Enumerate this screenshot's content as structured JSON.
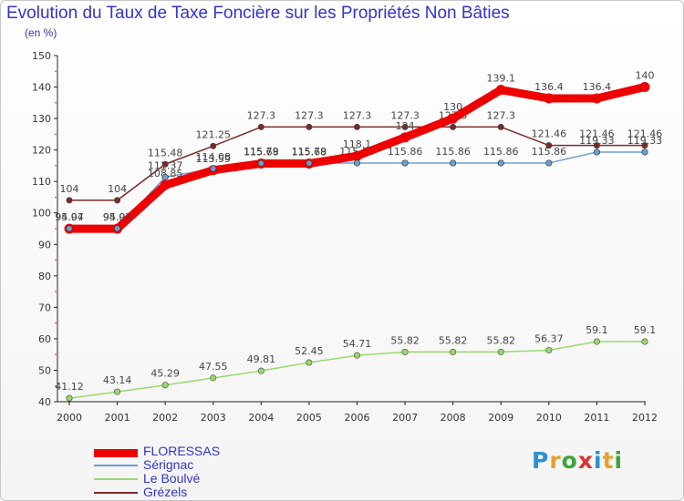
{
  "header": {
    "title": "Evolution du Taux de Taxe Foncière sur les Propriétés Non Bâties",
    "unit": "(en %)"
  },
  "logo": {
    "text": "Proxiti",
    "letters": [
      "P",
      "r",
      "o",
      "x",
      "i",
      "t",
      "i"
    ],
    "letter_colors": [
      "#2b8fd6",
      "#e8a030",
      "#3aa53a",
      "#e0302a",
      "#2b8fd6",
      "#e8a030",
      "#3aa53a"
    ]
  },
  "chart_data": {
    "type": "line",
    "title": "Evolution du Taux de Taxe Foncière sur les Propriétés Non Bâties",
    "ylabel": "(en %)",
    "xlabel": "",
    "x": [
      "2000",
      "2001",
      "2002",
      "2003",
      "2004",
      "2005",
      "2006",
      "2007",
      "2008",
      "2009",
      "2010",
      "2011",
      "2012"
    ],
    "ylim": [
      40,
      150
    ],
    "yticks": [
      40,
      50,
      60,
      70,
      80,
      90,
      100,
      110,
      120,
      130,
      140,
      150
    ],
    "grid": false,
    "legend_position": "bottom-left",
    "series": [
      {
        "name": "FLORESSAS",
        "color": "#ee0000",
        "emphasis": true,
        "values": [
          94.97,
          94.97,
          108.85,
          113.59,
          115.68,
          115.68,
          118.1,
          124,
          130,
          139.1,
          136.4,
          136.4,
          140
        ],
        "labels": [
          "94.97",
          "94.97",
          "108.85",
          "113.59",
          "115.68",
          "115.68",
          "118.1",
          "124",
          "130",
          "139.1",
          "136.4",
          "136.4",
          "140"
        ]
      },
      {
        "name": "Sérignac",
        "color": "#6a9fd4",
        "emphasis": false,
        "values": [
          95.04,
          95.04,
          111.37,
          114.08,
          115.79,
          115.79,
          115.86,
          115.86,
          115.86,
          115.86,
          115.86,
          119.33,
          119.33
        ],
        "labels": [
          "95.04",
          "95.04",
          "111.37",
          "114.08",
          "115.79",
          "115.79",
          "115.86",
          "115.86",
          "115.86",
          "115.86",
          "115.86",
          "119.33",
          "119.33"
        ]
      },
      {
        "name": "Le Boulvé",
        "color": "#99d96b",
        "emphasis": false,
        "values": [
          41.12,
          43.14,
          45.29,
          47.55,
          49.81,
          52.45,
          54.71,
          55.82,
          55.82,
          55.82,
          56.37,
          59.1,
          59.1
        ],
        "labels": [
          "41.12",
          "43.14",
          "45.29",
          "47.55",
          "49.81",
          "52.45",
          "54.71",
          "55.82",
          "55.82",
          "55.82",
          "56.37",
          "59.1",
          "59.1"
        ]
      },
      {
        "name": "Grézels",
        "color": "#7b2a2a",
        "emphasis": false,
        "values": [
          104,
          104,
          115.48,
          121.25,
          127.3,
          127.3,
          127.3,
          127.3,
          127.3,
          127.3,
          121.46,
          121.46,
          121.46
        ],
        "labels": [
          "104",
          "104",
          "115.48",
          "121.25",
          "127.3",
          "127.3",
          "127.3",
          "127.3",
          "127.3",
          "127.3",
          "121.46",
          "121.46",
          "121.46"
        ]
      }
    ]
  }
}
